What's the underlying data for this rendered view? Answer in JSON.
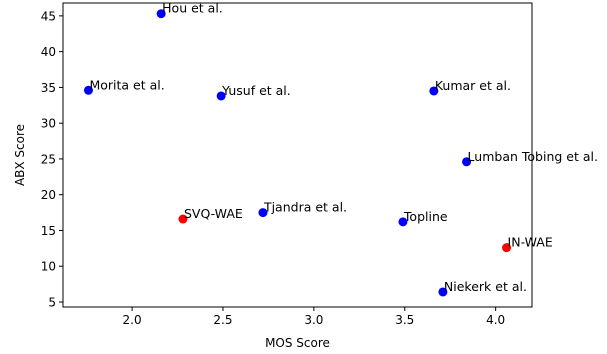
{
  "chart_data": {
    "type": "scatter",
    "title": "",
    "xlabel": "MOS Score",
    "ylabel": "ABX Score",
    "xlim": [
      1.62,
      4.2
    ],
    "ylim": [
      4.3,
      46.8
    ],
    "xticks": [
      2.0,
      2.5,
      3.0,
      3.5,
      4.0
    ],
    "xtick_labels": [
      "2.0",
      "2.5",
      "3.0",
      "3.5",
      "4.0"
    ],
    "yticks": [
      5,
      10,
      15,
      20,
      25,
      30,
      35,
      40,
      45
    ],
    "ytick_labels": [
      "5",
      "10",
      "15",
      "20",
      "25",
      "30",
      "35",
      "40",
      "45"
    ],
    "grid": false,
    "legend": "none",
    "colors": {
      "baseline": "#0000ff",
      "proposed": "#ff0000"
    },
    "points": [
      {
        "label": "Hou et al.",
        "x": 2.16,
        "y": 45.3,
        "group": "baseline"
      },
      {
        "label": "Morita et al.",
        "x": 1.76,
        "y": 34.6,
        "group": "baseline"
      },
      {
        "label": "Yusuf et al.",
        "x": 2.49,
        "y": 33.8,
        "group": "baseline"
      },
      {
        "label": "Kumar et al.",
        "x": 3.66,
        "y": 34.5,
        "group": "baseline"
      },
      {
        "label": "Lumban Tobing et al.",
        "x": 3.84,
        "y": 24.6,
        "group": "baseline"
      },
      {
        "label": "Tjandra et al.",
        "x": 2.72,
        "y": 17.5,
        "group": "baseline"
      },
      {
        "label": "Topline",
        "x": 3.49,
        "y": 16.2,
        "group": "baseline"
      },
      {
        "label": "Niekerk et al.",
        "x": 3.71,
        "y": 6.4,
        "group": "baseline"
      },
      {
        "label": "SVQ-WAE",
        "x": 2.28,
        "y": 16.6,
        "group": "proposed"
      },
      {
        "label": "IN-WAE",
        "x": 4.06,
        "y": 12.6,
        "group": "proposed"
      }
    ]
  }
}
